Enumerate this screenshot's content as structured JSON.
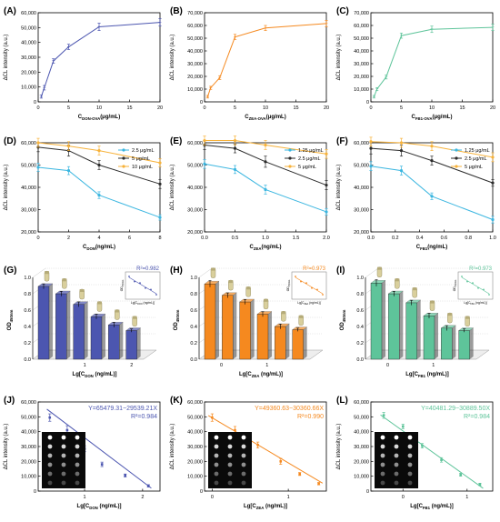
{
  "chart_data": [
    {
      "id": "A",
      "panel_label": "(A)",
      "type": "line",
      "color": "#4c56b0",
      "xlabel": "C",
      "xlabel_sub": "DON-OVA",
      "xlabel_unit": "(μg/mL)",
      "ylabel": "ΔCL intensity (a.u.)",
      "xlim": [
        0,
        20
      ],
      "ylim": [
        0,
        60000
      ],
      "xticks": [
        "0",
        "5",
        "10",
        "15",
        "20"
      ],
      "yticks": [
        "0",
        "10,000",
        "20,000",
        "30,000",
        "40,000",
        "50,000",
        "60,000"
      ],
      "x": [
        0.5,
        1,
        2.5,
        5,
        10,
        20
      ],
      "y": [
        3500,
        9500,
        27500,
        37000,
        50500,
        53500
      ],
      "err": [
        1000,
        1500,
        1500,
        1800,
        2500,
        2500
      ]
    },
    {
      "id": "B",
      "panel_label": "(B)",
      "type": "line",
      "color": "#f5891f",
      "xlabel": "C",
      "xlabel_sub": "ZEA-OVA",
      "xlabel_unit": "(μg/mL)",
      "ylabel": "ΔCL intensity (a.u.)",
      "xlim": [
        0,
        20
      ],
      "ylim": [
        0,
        70000
      ],
      "xticks": [
        "0",
        "5",
        "10",
        "15",
        "20"
      ],
      "yticks": [
        "0",
        "10,000",
        "20,000",
        "30,000",
        "40,000",
        "50,000",
        "60,000",
        "70,000"
      ],
      "x": [
        0.5,
        1,
        2.5,
        5,
        10,
        20
      ],
      "y": [
        4000,
        11000,
        19000,
        51000,
        58000,
        61500
      ],
      "err": [
        1000,
        1200,
        1500,
        2000,
        2000,
        2500
      ]
    },
    {
      "id": "C",
      "panel_label": "(C)",
      "type": "line",
      "color": "#5ec49a",
      "xlabel": "C",
      "xlabel_sub": "FB1-OVA",
      "xlabel_unit": "(μg/mL)",
      "ylabel": "ΔCL intensity (a.u.)",
      "xlim": [
        0,
        20
      ],
      "ylim": [
        0,
        70000
      ],
      "xticks": [
        "0",
        "5",
        "10",
        "15",
        "20"
      ],
      "yticks": [
        "0",
        "10,000",
        "20,000",
        "30,000",
        "40,000",
        "50,000",
        "60,000",
        "70,000"
      ],
      "x": [
        0.5,
        1,
        2.5,
        5,
        10,
        20
      ],
      "y": [
        4000,
        10000,
        19500,
        52000,
        57000,
        58500
      ],
      "err": [
        1000,
        1200,
        1500,
        2000,
        2500,
        2500
      ]
    },
    {
      "id": "D",
      "panel_label": "(D)",
      "type": "line",
      "xlabel": "C",
      "xlabel_sub": "DON",
      "xlabel_unit": "(ng/mL)",
      "ylabel": "ΔCL intensity (a.u.)",
      "xlim": [
        0,
        8
      ],
      "ylim": [
        20000,
        60000
      ],
      "xticks": [
        "0",
        "2",
        "4",
        "6",
        "8"
      ],
      "yticks": [
        "20,000",
        "30,000",
        "40,000",
        "50,000",
        "60,000"
      ],
      "legend_position": "top-right",
      "x": [
        0,
        2,
        4,
        8
      ],
      "series": [
        {
          "name": "2.5 μg/mL",
          "color": "#3bb6e0",
          "values": [
            49000,
            47500,
            36500,
            26500
          ],
          "err": [
            1800,
            1800,
            1500,
            1200
          ]
        },
        {
          "name": "5 μg/mL",
          "color": "#2b2b2b",
          "values": [
            58000,
            56500,
            50000,
            41500
          ],
          "err": [
            2000,
            2500,
            2000,
            2000
          ]
        },
        {
          "name": "10 μg/mL",
          "color": "#f7b23a",
          "values": [
            60000,
            58500,
            56500,
            51000
          ],
          "err": [
            2000,
            2000,
            2000,
            1800
          ]
        }
      ]
    },
    {
      "id": "E",
      "panel_label": "(E)",
      "type": "line",
      "xlabel": "C",
      "xlabel_sub": "ZEA",
      "xlabel_unit": "(ng/mL)",
      "ylabel": "ΔCL intensity (a.u.)",
      "xlim": [
        0,
        2.0
      ],
      "ylim": [
        20000,
        60000
      ],
      "xticks": [
        "0.0",
        "0.5",
        "1.0",
        "1.5",
        "2.0"
      ],
      "yticks": [
        "20,000",
        "30,000",
        "40,000",
        "50,000",
        "60,000"
      ],
      "legend_position": "top-right",
      "x": [
        0,
        0.5,
        1,
        2
      ],
      "series": [
        {
          "name": "1.25 μg/mL",
          "color": "#3bb6e0",
          "values": [
            50500,
            48000,
            39000,
            29000
          ],
          "err": [
            2000,
            1800,
            2000,
            1500
          ]
        },
        {
          "name": "2.5 μg/mL",
          "color": "#2b2b2b",
          "values": [
            59000,
            57500,
            51500,
            41000
          ],
          "err": [
            2000,
            2000,
            2500,
            2000
          ]
        },
        {
          "name": "5 μg/mL",
          "color": "#f7b23a",
          "values": [
            61000,
            61000,
            59000,
            55000
          ],
          "err": [
            2000,
            2000,
            2000,
            2000
          ]
        }
      ]
    },
    {
      "id": "F",
      "panel_label": "(F)",
      "type": "line",
      "xlabel": "C",
      "xlabel_sub": "FB1",
      "xlabel_unit": "(ng/mL)",
      "ylabel": "ΔCL intensity (a.u.)",
      "xlim": [
        0,
        1.0
      ],
      "ylim": [
        20000,
        60000
      ],
      "xticks": [
        "0.0",
        "0.2",
        "0.4",
        "0.6",
        "0.8",
        "1.0"
      ],
      "yticks": [
        "20,000",
        "30,000",
        "40,000",
        "50,000",
        "60,000"
      ],
      "legend_position": "top-right",
      "x": [
        0,
        0.25,
        0.5,
        1
      ],
      "series": [
        {
          "name": "1.25 μg/mL",
          "color": "#3bb6e0",
          "values": [
            49500,
            47500,
            36000,
            25500
          ],
          "err": [
            2000,
            2000,
            1500,
            1500
          ]
        },
        {
          "name": "2.5 μg/mL",
          "color": "#2b2b2b",
          "values": [
            57500,
            56500,
            52000,
            42000
          ],
          "err": [
            2500,
            2500,
            2000,
            1500
          ]
        },
        {
          "name": "5 μg/mL",
          "color": "#f7b23a",
          "values": [
            60500,
            60000,
            58500,
            53500
          ],
          "err": [
            2000,
            2000,
            2000,
            2000
          ]
        }
      ]
    },
    {
      "id": "G",
      "panel_label": "(G)",
      "type": "bar",
      "color": "#4c56b0",
      "xlabel": "Lg[C",
      "xlabel_sub": "DON",
      "xlabel_unit": " (ng/mL)]",
      "ylabel": "OD",
      "ylabel_sub": "450nm",
      "ylim": [
        0,
        1.0
      ],
      "yticks": [
        "0.0",
        "0.2",
        "0.4",
        "0.6",
        "0.8",
        "1.0"
      ],
      "xticks": [
        "1",
        "2"
      ],
      "values": [
        0.89,
        0.8,
        0.67,
        0.52,
        0.42,
        0.35
      ],
      "err": [
        0.03,
        0.03,
        0.03,
        0.03,
        0.03,
        0.02
      ],
      "inset": {
        "r2_label": "R²=0.982",
        "ylabel": "OD",
        "ylabel_sub": "450nm",
        "xlabel": "Lg[C",
        "xlabel_sub": "DON",
        "xlabel_unit": " (ng/mL)]"
      }
    },
    {
      "id": "H",
      "panel_label": "(H)",
      "type": "bar",
      "color": "#f5891f",
      "xlabel": "Lg[C",
      "xlabel_sub": "ZEA",
      "xlabel_unit": " (ng/mL)]",
      "ylabel": "OD",
      "ylabel_sub": "450nm",
      "ylim": [
        0,
        1.0
      ],
      "yticks": [
        "0.0",
        "0.2",
        "0.4",
        "0.6",
        "0.8",
        "1.0"
      ],
      "xticks": [
        "0",
        "1"
      ],
      "values": [
        0.92,
        0.78,
        0.7,
        0.55,
        0.4,
        0.36
      ],
      "err": [
        0.04,
        0.03,
        0.03,
        0.03,
        0.03,
        0.02
      ],
      "inset": {
        "r2_label": "R²=0.973",
        "ylabel": "OD",
        "ylabel_sub": "450nm",
        "xlabel": "Lg[C",
        "xlabel_sub": "ZEA",
        "xlabel_unit": " (ng/mL)]"
      }
    },
    {
      "id": "I",
      "panel_label": "(I)",
      "type": "bar",
      "color": "#5ec49a",
      "xlabel": "Lg[C",
      "xlabel_sub": "FB1",
      "xlabel_unit": " (ng/mL)]",
      "ylabel": "OD",
      "ylabel_sub": "450nm",
      "ylim": [
        0,
        1.0
      ],
      "yticks": [
        "0.0",
        "0.2",
        "0.4",
        "0.6",
        "0.8",
        "1.0"
      ],
      "xticks": [
        "0",
        "1"
      ],
      "values": [
        0.93,
        0.8,
        0.69,
        0.53,
        0.38,
        0.35
      ],
      "err": [
        0.04,
        0.03,
        0.03,
        0.03,
        0.03,
        0.02
      ],
      "inset": {
        "r2_label": "R²=0.973",
        "ylabel": "OD",
        "ylabel_sub": "450nm",
        "xlabel": "Lg[C",
        "xlabel_sub": "FB1",
        "xlabel_unit": " (ng/mL)]"
      }
    },
    {
      "id": "J",
      "panel_label": "(J)",
      "type": "scatter",
      "color": "#4c56b0",
      "xlabel": "Lg[C",
      "xlabel_sub": "DON",
      "xlabel_unit": " (ng/mL)]",
      "ylabel": "ΔCL intensity (a.u.)",
      "xlim": [
        0.2,
        2.3
      ],
      "ylim": [
        0,
        60000
      ],
      "xticks": [
        "1",
        "2"
      ],
      "xtick_values": [
        1,
        2
      ],
      "yticks": [
        "0",
        "10,000",
        "20,000",
        "30,000",
        "40,000",
        "50,000",
        "60,000"
      ],
      "x": [
        0.4,
        0.7,
        1.0,
        1.3,
        1.7,
        2.1
      ],
      "y": [
        49500,
        41000,
        28500,
        18000,
        10500,
        3500
      ],
      "err": [
        2500,
        3000,
        2000,
        1500,
        1000,
        800
      ],
      "fit": [
        65479.31,
        -29539.21
      ],
      "equation": "Y=65479.31−29539.21X",
      "r2_label": "R²=0.984"
    },
    {
      "id": "K",
      "panel_label": "(K)",
      "type": "scatter",
      "color": "#f5891f",
      "xlabel": "Lg[C",
      "xlabel_sub": "ZEA",
      "xlabel_unit": " (ng/mL)]",
      "ylabel": "ΔCL intensity (a.u.)",
      "xlim": [
        -0.1,
        1.5
      ],
      "ylim": [
        0,
        60000
      ],
      "xticks": [
        "0",
        "1"
      ],
      "xtick_values": [
        0,
        1
      ],
      "yticks": [
        "0",
        "10,000",
        "20,000",
        "30,000",
        "40,000",
        "50,000",
        "60,000"
      ],
      "x": [
        0.0,
        0.3,
        0.6,
        0.9,
        1.15,
        1.4
      ],
      "y": [
        49500,
        41000,
        31000,
        20000,
        11500,
        5000
      ],
      "err": [
        2500,
        2500,
        2000,
        2000,
        1000,
        800
      ],
      "fit": [
        49360.63,
        -30360.66
      ],
      "equation": "Y=49360.63−30360.66X",
      "r2_label": "R²=0.990"
    },
    {
      "id": "L",
      "panel_label": "(L)",
      "type": "scatter",
      "color": "#5ec49a",
      "xlabel": "Lg[C",
      "xlabel_sub": "FB1",
      "xlabel_unit": " (ng/mL)]",
      "ylabel": "ΔCL intensity (a.u.)",
      "xlim": [
        -0.5,
        1.4
      ],
      "ylim": [
        0,
        60000
      ],
      "xticks": [
        "0",
        "1"
      ],
      "xtick_values": [
        0,
        1
      ],
      "yticks": [
        "0",
        "10,000",
        "20,000",
        "30,000",
        "40,000",
        "50,000",
        "60,000"
      ],
      "x": [
        -0.3,
        0.0,
        0.3,
        0.6,
        0.9,
        1.2
      ],
      "y": [
        51000,
        43500,
        30500,
        21000,
        11000,
        4500
      ],
      "err": [
        2000,
        1500,
        1500,
        1500,
        1000,
        800
      ],
      "fit": [
        40481.29,
        -30889.5
      ],
      "equation": "Y=40481.29−30889.50X",
      "r2_label": "R²=0.984"
    }
  ]
}
